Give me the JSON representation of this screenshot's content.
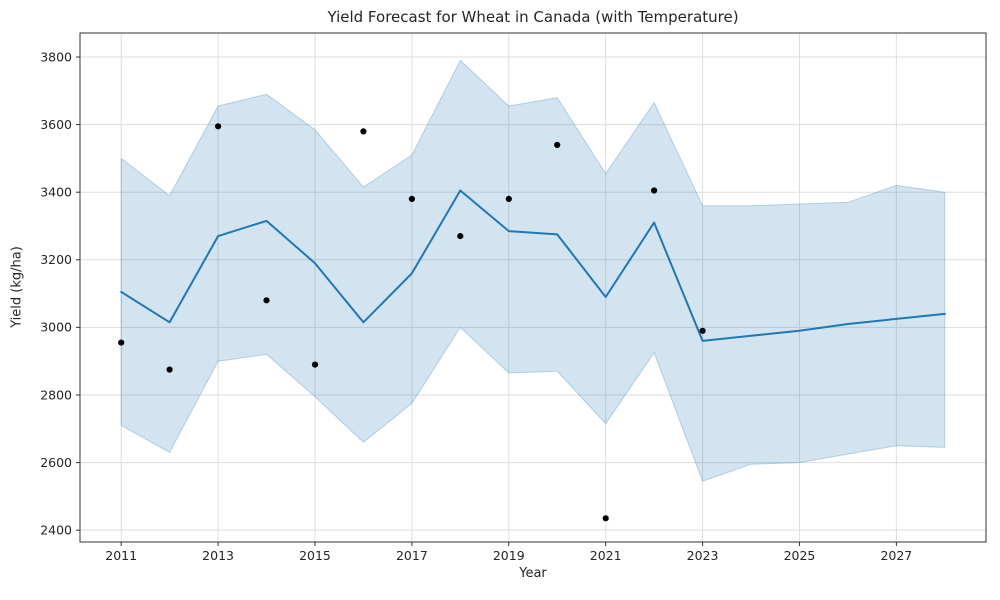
{
  "chart_data": {
    "type": "line",
    "title": "Yield Forecast for Wheat in Canada (with Temperature)",
    "xlabel": "Year",
    "ylabel": "Yield (kg/ha)",
    "xlim": [
      2010.15,
      2028.85
    ],
    "ylim": [
      2365,
      3871
    ],
    "x_ticks": [
      2011,
      2013,
      2015,
      2017,
      2019,
      2021,
      2023,
      2025,
      2027
    ],
    "y_ticks": [
      2400,
      2600,
      2800,
      3000,
      3200,
      3400,
      3600,
      3800
    ],
    "grid": true,
    "legend": "none",
    "colors": {
      "forecast_line": "#1f77b4",
      "band_fill": "rgba(31,119,180,0.2)",
      "band_edge": "rgba(31,119,180,0.28)",
      "observed_dot": "#000000",
      "gridline": "#dedede",
      "spine": "#333333",
      "tick_text": "#262626"
    },
    "series": [
      {
        "name": "confidence-band",
        "type": "band",
        "x": [
          2011,
          2012,
          2013,
          2014,
          2015,
          2016,
          2017,
          2018,
          2019,
          2020,
          2021,
          2022,
          2023,
          2024,
          2025,
          2026,
          2027,
          2028
        ],
        "upper": [
          3500,
          3390,
          3655,
          3690,
          3585,
          3415,
          3510,
          3790,
          3655,
          3680,
          3455,
          3665,
          3360,
          3360,
          3365,
          3370,
          3420,
          3400
        ],
        "lower": [
          2710,
          2630,
          2900,
          2920,
          2795,
          2660,
          2775,
          3000,
          2865,
          2870,
          2715,
          2925,
          2545,
          2595,
          2600,
          2625,
          2650,
          2645
        ]
      },
      {
        "name": "forecast",
        "type": "line",
        "x": [
          2011,
          2012,
          2013,
          2014,
          2015,
          2016,
          2017,
          2018,
          2019,
          2020,
          2021,
          2022,
          2023,
          2024,
          2025,
          2026,
          2027,
          2028
        ],
        "y": [
          3105,
          3015,
          3270,
          3315,
          3190,
          3015,
          3160,
          3405,
          3285,
          3275,
          3090,
          3310,
          2960,
          2975,
          2990,
          3010,
          3025,
          3040
        ]
      },
      {
        "name": "observed",
        "type": "scatter",
        "x": [
          2011,
          2012,
          2013,
          2014,
          2015,
          2016,
          2017,
          2018,
          2019,
          2020,
          2021,
          2022,
          2023
        ],
        "y": [
          2955,
          2875,
          3595,
          3080,
          2890,
          3580,
          3380,
          3270,
          3380,
          3540,
          2435,
          3405,
          2990
        ]
      }
    ]
  }
}
